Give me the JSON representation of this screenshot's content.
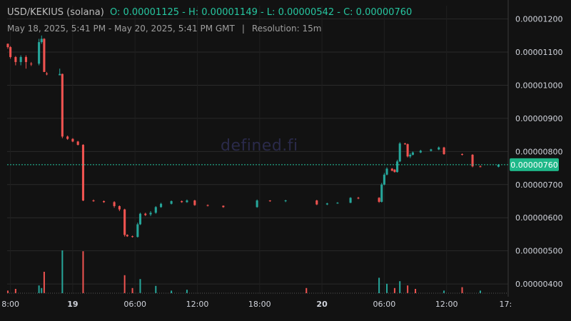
{
  "header": {
    "symbol": "USD/KEKIUS (solana)",
    "ohlc": "O: 0.00001125 - H: 0.00001149 - L: 0.00000542 - C: 0.00000760",
    "range": "May 18, 2025, 5:41 PM - May 20, 2025, 5:41 PM GMT",
    "separator": "|",
    "resolution": "Resolution: 15m"
  },
  "watermark": "defined.fi",
  "colors": {
    "up": "#26a69a",
    "down": "#ef5350",
    "background": "#121212",
    "grid": "#2a2a2a",
    "last_price": "#26c6a0"
  },
  "chart_data": {
    "type": "candlestick",
    "resolution_minutes": 15,
    "y_ticks": [
      "0.00000400",
      "0.00000500",
      "0.00000600",
      "0.00000700",
      "0.00000800",
      "0.00000900",
      "0.00001000",
      "0.00001100",
      "0.00001200"
    ],
    "x_ticks": [
      {
        "label": "8:00",
        "t": "2025-05-18 18:00"
      },
      {
        "label": "19",
        "t": "2025-05-19 00:00",
        "bold": true
      },
      {
        "label": "06:00",
        "t": "2025-05-19 06:00"
      },
      {
        "label": "12:00",
        "t": "2025-05-19 12:00"
      },
      {
        "label": "18:00",
        "t": "2025-05-19 18:00"
      },
      {
        "label": "20",
        "t": "2025-05-20 00:00",
        "bold": true
      },
      {
        "label": "06:00",
        "t": "2025-05-20 06:00"
      },
      {
        "label": "12:00",
        "t": "2025-05-20 12:00"
      },
      {
        "label": "17:",
        "t": "2025-05-20 17:41"
      }
    ],
    "ylim": [
      3.7e-06,
      1.24e-05
    ],
    "xlim": [
      "2025-05-18 17:41",
      "2025-05-20 17:56"
    ],
    "last_price": "0.00000760",
    "candles": [
      {
        "t": "2025-05-18 17:45",
        "o": 1.125e-05,
        "h": 1.126e-05,
        "l": 1.11e-05,
        "c": 1.115e-05
      },
      {
        "t": "2025-05-18 18:00",
        "o": 1.115e-05,
        "h": 1.118e-05,
        "l": 1.08e-05,
        "c": 1.085e-05
      },
      {
        "t": "2025-05-18 18:30",
        "o": 1.085e-05,
        "h": 1.088e-05,
        "l": 1.06e-05,
        "c": 1.07e-05
      },
      {
        "t": "2025-05-18 19:00",
        "o": 1.07e-05,
        "h": 1.09e-05,
        "l": 1.06e-05,
        "c": 1.085e-05
      },
      {
        "t": "2025-05-18 19:30",
        "o": 1.085e-05,
        "h": 1.09e-05,
        "l": 1.05e-05,
        "c": 1.07e-05
      },
      {
        "t": "2025-05-18 20:00",
        "o": 1.065e-05,
        "h": 1.07e-05,
        "l": 1.058e-05,
        "c": 1.064e-05
      },
      {
        "t": "2025-05-18 20:45",
        "o": 1.065e-05,
        "h": 1.14e-05,
        "l": 1.06e-05,
        "c": 1.13e-05
      },
      {
        "t": "2025-05-18 21:00",
        "o": 1.13e-05,
        "h": 1.15e-05,
        "l": 1.125e-05,
        "c": 1.14e-05
      },
      {
        "t": "2025-05-18 21:15",
        "o": 1.14e-05,
        "h": 1.142e-05,
        "l": 1.04e-05,
        "c": 1.04e-05
      },
      {
        "t": "2025-05-18 21:30",
        "o": 1.035e-05,
        "h": 1.04e-05,
        "l": 1.03e-05,
        "c": 1.033e-05
      },
      {
        "t": "2025-05-18 22:45",
        "o": 1.03e-05,
        "h": 1.05e-05,
        "l": 1.03e-05,
        "c": 1.034e-05
      },
      {
        "t": "2025-05-18 23:00",
        "o": 1.034e-05,
        "h": 1.035e-05,
        "l": 8.4e-06,
        "c": 8.45e-06
      },
      {
        "t": "2025-05-18 23:30",
        "o": 8.45e-06,
        "h": 8.48e-06,
        "l": 8.35e-06,
        "c": 8.38e-06
      },
      {
        "t": "2025-05-19 00:00",
        "o": 8.38e-06,
        "h": 8.4e-06,
        "l": 8.28e-06,
        "c": 8.3e-06
      },
      {
        "t": "2025-05-19 00:30",
        "o": 8.3e-06,
        "h": 8.32e-06,
        "l": 8.18e-06,
        "c": 8.2e-06
      },
      {
        "t": "2025-05-19 01:00",
        "o": 8.2e-06,
        "h": 8.22e-06,
        "l": 6.5e-06,
        "c": 6.52e-06
      },
      {
        "t": "2025-05-19 02:00",
        "o": 6.52e-06,
        "h": 6.55e-06,
        "l": 6.48e-06,
        "c": 6.5e-06
      },
      {
        "t": "2025-05-19 03:00",
        "o": 6.5e-06,
        "h": 6.52e-06,
        "l": 6.45e-06,
        "c": 6.47e-06
      },
      {
        "t": "2025-05-19 04:00",
        "o": 6.47e-06,
        "h": 6.5e-06,
        "l": 6.3e-06,
        "c": 6.35e-06
      },
      {
        "t": "2025-05-19 04:30",
        "o": 6.35e-06,
        "h": 6.37e-06,
        "l": 6.2e-06,
        "c": 6.25e-06
      },
      {
        "t": "2025-05-19 05:00",
        "o": 6.25e-06,
        "h": 6.27e-06,
        "l": 5.43e-06,
        "c": 5.48e-06
      },
      {
        "t": "2025-05-19 05:15",
        "o": 5.48e-06,
        "h": 5.5e-06,
        "l": 5.42e-06,
        "c": 5.44e-06
      },
      {
        "t": "2025-05-19 05:45",
        "o": 5.44e-06,
        "h": 5.46e-06,
        "l": 5.4e-06,
        "c": 5.42e-06
      },
      {
        "t": "2025-05-19 06:15",
        "o": 5.42e-06,
        "h": 5.85e-06,
        "l": 5.4e-06,
        "c": 5.8e-06
      },
      {
        "t": "2025-05-19 06:30",
        "o": 5.8e-06,
        "h": 6.15e-06,
        "l": 5.78e-06,
        "c": 6.12e-06
      },
      {
        "t": "2025-05-19 07:00",
        "o": 6.12e-06,
        "h": 6.15e-06,
        "l": 6.05e-06,
        "c": 6.08e-06
      },
      {
        "t": "2025-05-19 07:30",
        "o": 6.1e-06,
        "h": 6.2e-06,
        "l": 6.05e-06,
        "c": 6.15e-06
      },
      {
        "t": "2025-05-19 08:00",
        "o": 6.15e-06,
        "h": 6.35e-06,
        "l": 6.12e-06,
        "c": 6.32e-06
      },
      {
        "t": "2025-05-19 08:30",
        "o": 6.32e-06,
        "h": 6.45e-06,
        "l": 6.3e-06,
        "c": 6.42e-06
      },
      {
        "t": "2025-05-19 09:30",
        "o": 6.42e-06,
        "h": 6.52e-06,
        "l": 6.4e-06,
        "c": 6.5e-06
      },
      {
        "t": "2025-05-19 10:30",
        "o": 6.5e-06,
        "h": 6.52e-06,
        "l": 6.45e-06,
        "c": 6.47e-06
      },
      {
        "t": "2025-05-19 11:00",
        "o": 6.47e-06,
        "h": 6.55e-06,
        "l": 6.45e-06,
        "c": 6.52e-06
      },
      {
        "t": "2025-05-19 11:45",
        "o": 6.52e-06,
        "h": 6.54e-06,
        "l": 6.36e-06,
        "c": 6.38e-06
      },
      {
        "t": "2025-05-19 13:00",
        "o": 6.38e-06,
        "h": 6.4e-06,
        "l": 6.34e-06,
        "c": 6.36e-06
      },
      {
        "t": "2025-05-19 14:30",
        "o": 6.36e-06,
        "h": 6.37e-06,
        "l": 6.3e-06,
        "c": 6.32e-06
      },
      {
        "t": "2025-05-19 17:45",
        "o": 6.32e-06,
        "h": 6.55e-06,
        "l": 6.3e-06,
        "c": 6.52e-06
      },
      {
        "t": "2025-05-19 19:00",
        "o": 6.52e-06,
        "h": 6.53e-06,
        "l": 6.48e-06,
        "c": 6.5e-06
      },
      {
        "t": "2025-05-19 20:30",
        "o": 6.5e-06,
        "h": 6.54e-06,
        "l": 6.47e-06,
        "c": 6.52e-06
      },
      {
        "t": "2025-05-19 23:30",
        "o": 6.52e-06,
        "h": 6.54e-06,
        "l": 6.38e-06,
        "c": 6.4e-06
      },
      {
        "t": "2025-05-20 00:30",
        "o": 6.4e-06,
        "h": 6.45e-06,
        "l": 6.38e-06,
        "c": 6.43e-06
      },
      {
        "t": "2025-05-20 01:30",
        "o": 6.43e-06,
        "h": 6.47e-06,
        "l": 6.42e-06,
        "c": 6.45e-06
      },
      {
        "t": "2025-05-20 02:45",
        "o": 6.45e-06,
        "h": 6.62e-06,
        "l": 6.44e-06,
        "c": 6.6e-06
      },
      {
        "t": "2025-05-20 03:30",
        "o": 6.6e-06,
        "h": 6.63e-06,
        "l": 6.56e-06,
        "c": 6.58e-06
      },
      {
        "t": "2025-05-20 05:30",
        "o": 6.6e-06,
        "h": 6.62e-06,
        "l": 6.45e-06,
        "c": 6.48e-06
      },
      {
        "t": "2025-05-20 05:45",
        "o": 6.48e-06,
        "h": 7.05e-06,
        "l": 6.46e-06,
        "c": 7e-06
      },
      {
        "t": "2025-05-20 06:00",
        "o": 7e-06,
        "h": 7.35e-06,
        "l": 6.98e-06,
        "c": 7.3e-06
      },
      {
        "t": "2025-05-20 06:15",
        "o": 7.3e-06,
        "h": 7.52e-06,
        "l": 7.28e-06,
        "c": 7.48e-06
      },
      {
        "t": "2025-05-20 06:45",
        "o": 7.48e-06,
        "h": 7.5e-06,
        "l": 7.4e-06,
        "c": 7.42e-06
      },
      {
        "t": "2025-05-20 07:00",
        "o": 7.45e-06,
        "h": 7.47e-06,
        "l": 7.36e-06,
        "c": 7.38e-06
      },
      {
        "t": "2025-05-20 07:15",
        "o": 7.38e-06,
        "h": 7.75e-06,
        "l": 7.36e-06,
        "c": 7.7e-06
      },
      {
        "t": "2025-05-20 07:30",
        "o": 7.7e-06,
        "h": 8.28e-06,
        "l": 7.68e-06,
        "c": 8.24e-06
      },
      {
        "t": "2025-05-20 08:00",
        "o": 8.24e-06,
        "h": 8.26e-06,
        "l": 8.2e-06,
        "c": 8.22e-06
      },
      {
        "t": "2025-05-20 08:15",
        "o": 8.22e-06,
        "h": 8.24e-06,
        "l": 7.82e-06,
        "c": 7.85e-06
      },
      {
        "t": "2025-05-20 08:30",
        "o": 7.85e-06,
        "h": 7.95e-06,
        "l": 7.8e-06,
        "c": 7.9e-06
      },
      {
        "t": "2025-05-20 08:45",
        "o": 7.9e-06,
        "h": 8e-06,
        "l": 7.88e-06,
        "c": 7.97e-06
      },
      {
        "t": "2025-05-20 09:30",
        "o": 7.97e-06,
        "h": 8.05e-06,
        "l": 7.95e-06,
        "c": 8.02e-06
      },
      {
        "t": "2025-05-20 10:30",
        "o": 8.02e-06,
        "h": 8.08e-06,
        "l": 8e-06,
        "c": 8.06e-06
      },
      {
        "t": "2025-05-20 11:15",
        "o": 8.06e-06,
        "h": 8.15e-06,
        "l": 8.04e-06,
        "c": 8.12e-06
      },
      {
        "t": "2025-05-20 11:45",
        "o": 8.12e-06,
        "h": 8.14e-06,
        "l": 7.9e-06,
        "c": 7.92e-06
      },
      {
        "t": "2025-05-20 13:30",
        "o": 7.92e-06,
        "h": 7.94e-06,
        "l": 7.88e-06,
        "c": 7.9e-06
      },
      {
        "t": "2025-05-20 14:30",
        "o": 7.9e-06,
        "h": 7.92e-06,
        "l": 7.52e-06,
        "c": 7.55e-06
      },
      {
        "t": "2025-05-20 15:15",
        "o": 7.55e-06,
        "h": 7.58e-06,
        "l": 7.52e-06,
        "c": 7.54e-06
      },
      {
        "t": "2025-05-20 17:00",
        "o": 7.54e-06,
        "h": 7.62e-06,
        "l": 7.52e-06,
        "c": 7.6e-06
      }
    ],
    "volume": [
      {
        "t": "2025-05-18 17:45",
        "v": 0.06,
        "up": false
      },
      {
        "t": "2025-05-18 18:30",
        "v": 0.1,
        "up": false
      },
      {
        "t": "2025-05-18 20:45",
        "v": 0.18,
        "up": true
      },
      {
        "t": "2025-05-18 21:00",
        "v": 0.12,
        "up": true
      },
      {
        "t": "2025-05-18 21:15",
        "v": 0.5,
        "up": false
      },
      {
        "t": "2025-05-18 23:00",
        "v": 1.0,
        "up": true
      },
      {
        "t": "2025-05-19 01:00",
        "v": 0.98,
        "up": false
      },
      {
        "t": "2025-05-19 05:00",
        "v": 0.42,
        "up": false
      },
      {
        "t": "2025-05-19 05:45",
        "v": 0.12,
        "up": false
      },
      {
        "t": "2025-05-19 06:30",
        "v": 0.33,
        "up": true
      },
      {
        "t": "2025-05-19 08:00",
        "v": 0.17,
        "up": true
      },
      {
        "t": "2025-05-19 09:30",
        "v": 0.06,
        "up": true
      },
      {
        "t": "2025-05-19 11:00",
        "v": 0.08,
        "up": true
      },
      {
        "t": "2025-05-19 22:30",
        "v": 0.12,
        "up": false
      },
      {
        "t": "2025-05-20 05:30",
        "v": 0.36,
        "up": true
      },
      {
        "t": "2025-05-20 06:15",
        "v": 0.22,
        "up": true
      },
      {
        "t": "2025-05-20 07:00",
        "v": 0.12,
        "up": false
      },
      {
        "t": "2025-05-20 07:30",
        "v": 0.28,
        "up": true
      },
      {
        "t": "2025-05-20 08:15",
        "v": 0.18,
        "up": false
      },
      {
        "t": "2025-05-20 09:00",
        "v": 0.1,
        "up": false
      },
      {
        "t": "2025-05-20 11:45",
        "v": 0.06,
        "up": true
      },
      {
        "t": "2025-05-20 13:30",
        "v": 0.14,
        "up": false
      },
      {
        "t": "2025-05-20 15:15",
        "v": 0.06,
        "up": true
      }
    ]
  }
}
